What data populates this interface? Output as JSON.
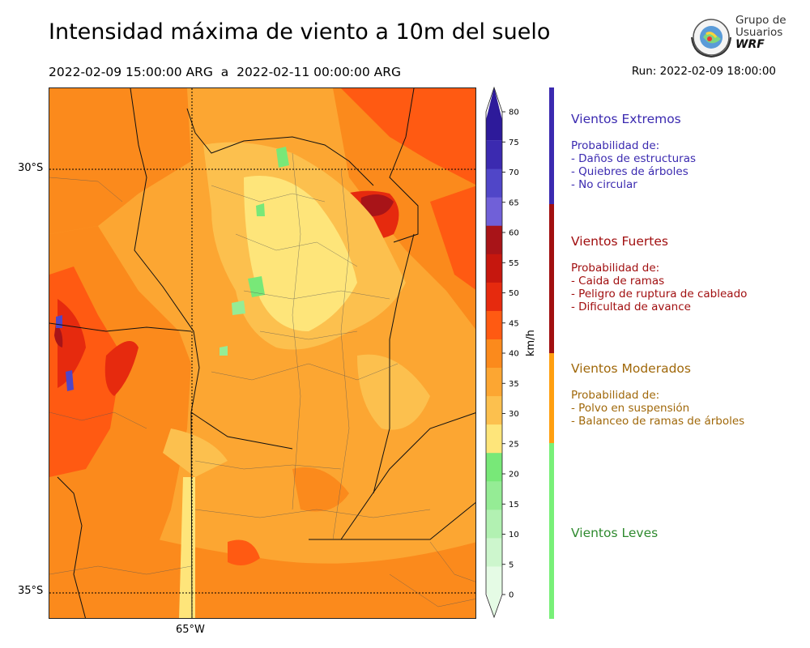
{
  "header": {
    "title": "Intensidad máxima de viento a 10m del suelo",
    "period": "2022-02-09 15:00:00 ARG  a  2022-02-11 00:00:00 ARG",
    "run": "Run: 2022-02-09 18:00:00"
  },
  "logo": {
    "line1": "Grupo de",
    "line2": "Usuarios",
    "line3": "WRF"
  },
  "map": {
    "lat_labels": [
      "30°S",
      "35°S"
    ],
    "lon_labels": [
      "65°W"
    ]
  },
  "colorbar": {
    "unit": "km/h",
    "ticks": [
      "0",
      "5",
      "10",
      "15",
      "20",
      "25",
      "30",
      "35",
      "40",
      "45",
      "50",
      "55",
      "60",
      "65",
      "70",
      "75",
      "80"
    ],
    "colors": [
      "#e5fbe5",
      "#cdf6cd",
      "#b2f1b2",
      "#95ec95",
      "#78e878",
      "#fee57a",
      "#fcc04e",
      "#fca632",
      "#fb8a1c",
      "#ff5a12",
      "#e62a0e",
      "#c6170e",
      "#a81418",
      "#7060d8",
      "#5046c8",
      "#3b2ab0",
      "#2d1a9a"
    ]
  },
  "categories": [
    {
      "title": "Vientos Extremos",
      "color": "#3b2ab0",
      "text": "Probabilidad de:\n- Daños de estructuras\n- Quiebres de árboles\n- No circular"
    },
    {
      "title": "Vientos Fuertes",
      "color": "#a10f10",
      "text": "Probabilidad de:\n- Caida de ramas\n- Peligro de ruptura de cableado\n- Dificultad de avance"
    },
    {
      "title": "Vientos Moderados",
      "color": "#a0680a",
      "text": "Probabilidad de:\n- Polvo en suspensión\n- Balanceo de ramas de árboles"
    },
    {
      "title": "Vientos Leves",
      "color": "#2f8a2f",
      "text": ""
    }
  ],
  "category_bands": [
    "#3b2ab0",
    "#a10f10",
    "#ff9f10",
    "#78f078"
  ]
}
